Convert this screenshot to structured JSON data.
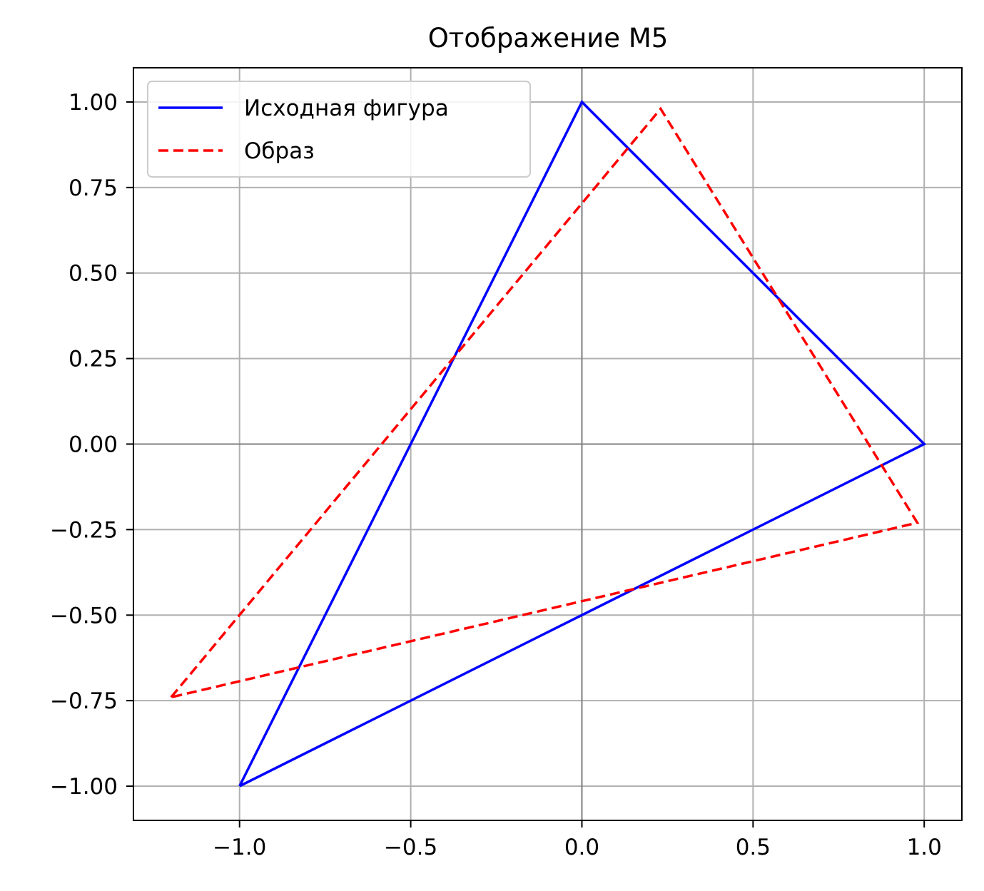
{
  "chart_data": {
    "type": "line",
    "title": "Отображение M5",
    "xlabel": "",
    "ylabel": "",
    "xlim": [
      -1.31,
      1.11
    ],
    "ylim": [
      -1.1,
      1.1
    ],
    "xticks": [
      -1.0,
      -0.5,
      0.0,
      0.5,
      1.0
    ],
    "xtick_labels": [
      "−1.0",
      "−0.5",
      "0.0",
      "0.5",
      "1.0"
    ],
    "yticks": [
      1.0,
      0.75,
      0.5,
      0.25,
      0.0,
      -0.25,
      -0.5,
      -0.75,
      -1.0
    ],
    "ytick_labels": [
      "1.00",
      "0.75",
      "0.50",
      "0.25",
      "0.00",
      "−0.25",
      "−0.50",
      "−0.75",
      "−1.00"
    ],
    "grid": true,
    "zero_axes": true,
    "legend_position": "upper-left",
    "series": [
      {
        "name": "Исходная фигура",
        "style": "solid",
        "color": "#0000ff",
        "points": [
          [
            -1.0,
            -1.0
          ],
          [
            0.0,
            1.0
          ],
          [
            1.0,
            0.0
          ],
          [
            -1.0,
            -1.0
          ]
        ]
      },
      {
        "name": "Образ",
        "style": "dashed",
        "color": "#ff0000",
        "points": [
          [
            -1.2,
            -0.74
          ],
          [
            0.23,
            0.98
          ],
          [
            0.98,
            -0.23
          ],
          [
            -1.2,
            -0.74
          ]
        ]
      }
    ]
  }
}
